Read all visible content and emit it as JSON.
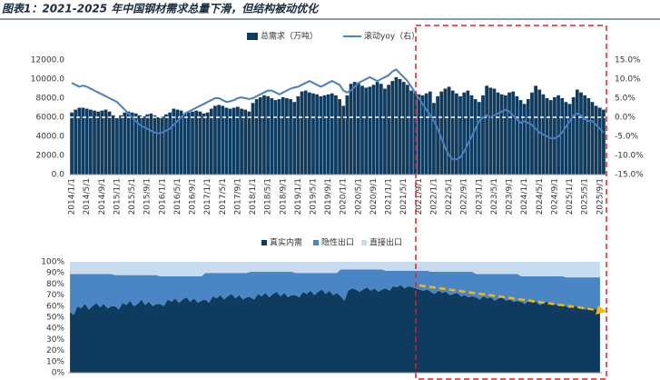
{
  "chart_data": [
    {
      "type": "bar_line",
      "title": "图表1：2021-2025 年中国钢材需求总量下滑，但结构被动优化",
      "categories": [
        "2014/1/1",
        null,
        null,
        null,
        "2014/5/1",
        null,
        null,
        null,
        "2014/9/1",
        null,
        null,
        null,
        "2015/1/1",
        null,
        null,
        null,
        "2015/5/1",
        null,
        null,
        null,
        "2015/9/1",
        null,
        null,
        null,
        "2016/1/1",
        null,
        null,
        null,
        "2016/5/1",
        null,
        null,
        null,
        "2016/9/1",
        null,
        null,
        null,
        "2017/1/1",
        null,
        null,
        null,
        "2017/5/1",
        null,
        null,
        null,
        "2017/9/1",
        null,
        null,
        null,
        "2018/1/1",
        null,
        null,
        null,
        "2018/5/1",
        null,
        null,
        null,
        "2018/9/1",
        null,
        null,
        null,
        "2019/1/1",
        null,
        null,
        null,
        "2019/5/1",
        null,
        null,
        null,
        "2019/9/1",
        null,
        null,
        null,
        "2020/1/1",
        null,
        null,
        null,
        "2020/5/1",
        null,
        null,
        null,
        "2020/9/1",
        null,
        null,
        null,
        "2021/1/1",
        null,
        null,
        null,
        "2021/5/1",
        null,
        null,
        null,
        "2021/9/1",
        null,
        null,
        null,
        "2022/1/1",
        null,
        null,
        null,
        "2022/5/1",
        null,
        null,
        null,
        "2022/9/1",
        null,
        null,
        null,
        "2023/1/1",
        null,
        null,
        null,
        "2023/5/1",
        null,
        null,
        null,
        "2023/9/1",
        null,
        null,
        null,
        "2024/1/1",
        null,
        null,
        null,
        "2024/5/1",
        null,
        null,
        null,
        "2024/9/1",
        null,
        null,
        null,
        "2025/1/1",
        null,
        null,
        null,
        "2025/5/1",
        null,
        null,
        null,
        "2025/9/1",
        null
      ],
      "series": [
        {
          "name": "总需求（万吨）",
          "color": "#0f3b5f",
          "kind": "bar",
          "values": [
            6500,
            6800,
            7000,
            7000,
            6900,
            6800,
            6700,
            6600,
            6700,
            6800,
            6600,
            6200,
            5900,
            6200,
            6500,
            6600,
            6500,
            6400,
            6200,
            6100,
            6300,
            6400,
            6200,
            6000,
            6100,
            6300,
            6500,
            6900,
            6800,
            6700,
            6400,
            6500,
            6600,
            6700,
            6600,
            6400,
            6500,
            6900,
            7200,
            7300,
            7200,
            7000,
            6900,
            7000,
            7100,
            6900,
            6800,
            6600,
            7500,
            7900,
            8100,
            8300,
            8200,
            8000,
            7800,
            7900,
            8100,
            8000,
            7900,
            7600,
            8200,
            8700,
            8800,
            8600,
            8500,
            8400,
            8200,
            8300,
            8400,
            8500,
            8300,
            7900,
            7200,
            8300,
            9500,
            9700,
            9600,
            9300,
            9100,
            9200,
            9400,
            9700,
            9500,
            9000,
            9400,
            9800,
            10200,
            10000,
            9700,
            9400,
            8800,
            8600,
            8400,
            8300,
            8500,
            8700,
            7500,
            8200,
            8700,
            9000,
            9200,
            8800,
            8500,
            8200,
            8600,
            8800,
            8300,
            7900,
            7600,
            8300,
            9300,
            9100,
            9000,
            8600,
            8400,
            8300,
            8600,
            8700,
            8200,
            7800,
            7400,
            7900,
            8600,
            9300,
            8900,
            8400,
            8000,
            7800,
            8100,
            8300,
            8000,
            7600,
            7400,
            8100,
            8900,
            8600,
            8300,
            8000,
            7600,
            7200,
            7000,
            6800
          ]
        },
        {
          "name": "滚动yoy（右）",
          "color": "#4a7fc1",
          "kind": "line",
          "axis": "y2",
          "values": [
            9.0,
            8.5,
            8.0,
            8.3,
            8.0,
            7.5,
            7.0,
            6.5,
            6.0,
            5.5,
            5.0,
            4.5,
            4.0,
            3.0,
            2.0,
            1.0,
            0.0,
            -1.0,
            -2.0,
            -2.5,
            -3.0,
            -3.5,
            -4.0,
            -4.2,
            -4.0,
            -3.5,
            -3.0,
            -2.0,
            -1.0,
            0.0,
            1.0,
            1.5,
            2.0,
            2.5,
            3.0,
            3.5,
            4.0,
            4.5,
            5.0,
            5.0,
            4.5,
            4.0,
            4.2,
            4.5,
            5.0,
            5.2,
            5.0,
            4.8,
            5.0,
            5.5,
            6.0,
            6.5,
            7.0,
            7.0,
            6.5,
            6.0,
            6.5,
            7.0,
            7.5,
            7.8,
            8.0,
            8.5,
            9.0,
            9.5,
            9.0,
            8.5,
            8.0,
            8.5,
            9.0,
            9.5,
            9.0,
            8.5,
            7.0,
            6.5,
            7.0,
            8.0,
            9.0,
            9.5,
            10.0,
            10.5,
            10.0,
            9.5,
            10.0,
            10.5,
            11.0,
            12.0,
            12.5,
            11.5,
            10.5,
            9.5,
            8.0,
            6.5,
            5.0,
            3.5,
            2.0,
            0.5,
            -1.0,
            -3.0,
            -5.5,
            -8.0,
            -10.0,
            -11.0,
            -11.0,
            -10.5,
            -9.0,
            -7.0,
            -5.0,
            -3.0,
            -1.0,
            0.0,
            0.5,
            0.0,
            0.5,
            1.0,
            1.5,
            2.0,
            1.5,
            0.5,
            -0.5,
            -1.5,
            -1.0,
            -1.5,
            -2.0,
            -3.0,
            -4.0,
            -4.5,
            -5.0,
            -5.5,
            -5.5,
            -5.0,
            -4.0,
            -2.5,
            -1.0,
            0.5,
            1.0,
            0.5,
            -0.5,
            -1.0,
            -1.0,
            -2.0,
            -3.0,
            -4.0
          ]
        }
      ],
      "ylim": [
        0,
        12000
      ],
      "yticks": [
        {
          "value": 0,
          "label": "0.0"
        },
        {
          "value": 2000,
          "label": "2000.0"
        },
        {
          "value": 4000,
          "label": "4000.0"
        },
        {
          "value": 6000,
          "label": "6000.0"
        },
        {
          "value": 8000,
          "label": "8000.0"
        },
        {
          "value": 10000,
          "label": "10000.0"
        },
        {
          "value": 12000,
          "label": "12000.0"
        }
      ],
      "y2lim": [
        -15,
        15
      ],
      "y2ticks": [
        {
          "value": -15,
          "label": "-15.0%"
        },
        {
          "value": -10,
          "label": "-10.0%"
        },
        {
          "value": -5,
          "label": "-5.0%"
        },
        {
          "value": 0,
          "label": "0.0%"
        },
        {
          "value": 5,
          "label": "5.0%"
        },
        {
          "value": 10,
          "label": "10.0%"
        },
        {
          "value": 15,
          "label": "15.0%"
        }
      ]
    },
    {
      "type": "stacked_area",
      "series": [
        {
          "name": "真实内需",
          "color": "#0f3b5f",
          "values": [
            55,
            52,
            60,
            58,
            62,
            57,
            60,
            63,
            59,
            62,
            58,
            60,
            60,
            57,
            63,
            61,
            65,
            60,
            62,
            66,
            61,
            64,
            60,
            62,
            62,
            60,
            66,
            64,
            67,
            63,
            66,
            68,
            64,
            67,
            63,
            65,
            66,
            63,
            69,
            67,
            70,
            66,
            69,
            71,
            67,
            70,
            66,
            68,
            68,
            66,
            71,
            69,
            72,
            68,
            71,
            73,
            69,
            72,
            68,
            70,
            70,
            68,
            73,
            71,
            74,
            70,
            73,
            75,
            71,
            74,
            70,
            72,
            69,
            65,
            74,
            76,
            75,
            73,
            75,
            77,
            74,
            76,
            73,
            75,
            76,
            74,
            78,
            77,
            79,
            76,
            78,
            77,
            76,
            75,
            74,
            75,
            73,
            71,
            74,
            72,
            73,
            70,
            71,
            72,
            69,
            70,
            68,
            69,
            68,
            66,
            69,
            67,
            68,
            65,
            67,
            68,
            65,
            66,
            64,
            65,
            64,
            62,
            65,
            63,
            64,
            61,
            63,
            64,
            61,
            62,
            60,
            61,
            60,
            58,
            61,
            59,
            60,
            57,
            58,
            59,
            57,
            56
          ]
        },
        {
          "name": "隐性出口",
          "color": "#4a86c5",
          "values": [
            34,
            37,
            29,
            31,
            27,
            32,
            29,
            26,
            30,
            27,
            31,
            29,
            28,
            31,
            25,
            27,
            23,
            28,
            26,
            22,
            27,
            24,
            28,
            26,
            25,
            27,
            21,
            23,
            20,
            24,
            21,
            19,
            23,
            20,
            24,
            22,
            24,
            27,
            21,
            23,
            20,
            24,
            21,
            19,
            23,
            20,
            24,
            22,
            23,
            25,
            20,
            22,
            19,
            23,
            20,
            18,
            22,
            19,
            23,
            21,
            20,
            22,
            17,
            19,
            16,
            20,
            17,
            15,
            19,
            16,
            20,
            18,
            24,
            28,
            19,
            17,
            18,
            20,
            18,
            16,
            19,
            17,
            20,
            18,
            16,
            18,
            14,
            15,
            13,
            16,
            14,
            15,
            16,
            17,
            18,
            17,
            18,
            20,
            17,
            19,
            18,
            21,
            20,
            19,
            22,
            21,
            23,
            22,
            21,
            23,
            20,
            22,
            21,
            24,
            22,
            21,
            24,
            23,
            25,
            24,
            23,
            25,
            22,
            24,
            23,
            26,
            24,
            23,
            26,
            25,
            27,
            26,
            26,
            28,
            25,
            27,
            26,
            29,
            28,
            27,
            29,
            30
          ]
        },
        {
          "name": "直接出口",
          "color": "#c9dcef",
          "values": [
            11,
            11,
            11,
            11,
            11,
            11,
            11,
            11,
            11,
            11,
            11,
            11,
            12,
            12,
            12,
            12,
            12,
            12,
            12,
            12,
            12,
            12,
            12,
            12,
            13,
            13,
            13,
            13,
            13,
            13,
            13,
            13,
            13,
            13,
            13,
            13,
            10,
            10,
            10,
            10,
            10,
            10,
            10,
            10,
            10,
            10,
            10,
            10,
            9,
            9,
            9,
            9,
            9,
            9,
            9,
            9,
            9,
            9,
            9,
            9,
            10,
            10,
            10,
            10,
            10,
            10,
            10,
            10,
            10,
            10,
            10,
            10,
            7,
            7,
            7,
            7,
            7,
            7,
            7,
            7,
            7,
            7,
            7,
            7,
            8,
            8,
            8,
            8,
            8,
            8,
            8,
            8,
            8,
            8,
            8,
            8,
            9,
            9,
            9,
            9,
            9,
            9,
            9,
            9,
            9,
            9,
            9,
            9,
            11,
            11,
            11,
            11,
            11,
            11,
            11,
            11,
            11,
            11,
            11,
            11,
            13,
            13,
            13,
            13,
            13,
            13,
            13,
            13,
            13,
            13,
            13,
            13,
            14,
            14,
            14,
            14,
            14,
            14,
            14,
            14,
            14,
            14
          ]
        }
      ],
      "ylim": [
        0,
        100
      ],
      "yticks": [
        {
          "value": 0,
          "label": "0%"
        },
        {
          "value": 10,
          "label": "10%"
        },
        {
          "value": 20,
          "label": "20%"
        },
        {
          "value": 30,
          "label": "30%"
        },
        {
          "value": 40,
          "label": "40%"
        },
        {
          "value": 50,
          "label": "50%"
        },
        {
          "value": 60,
          "label": "60%"
        },
        {
          "value": 70,
          "label": "70%"
        },
        {
          "value": 80,
          "label": "80%"
        },
        {
          "value": 90,
          "label": "90%"
        },
        {
          "value": 100,
          "label": "100%"
        }
      ]
    }
  ]
}
